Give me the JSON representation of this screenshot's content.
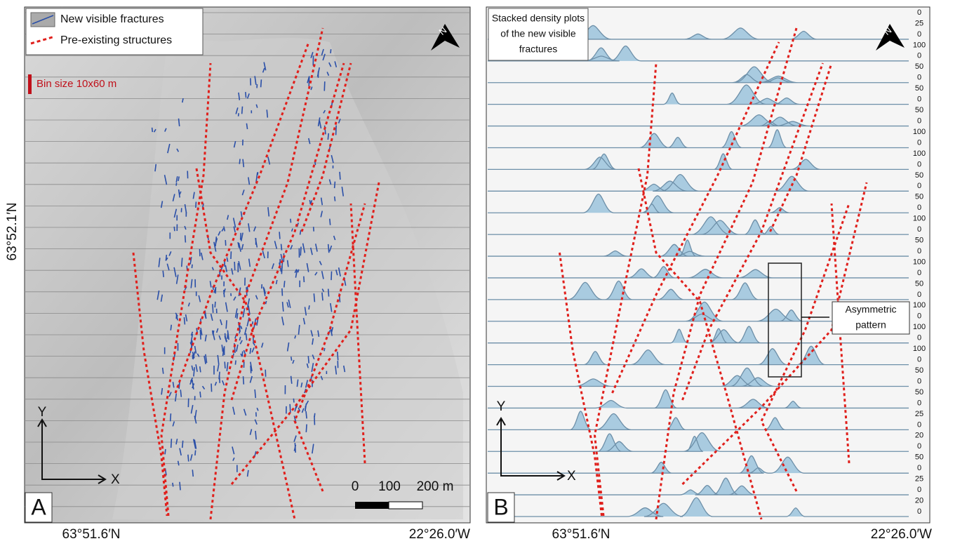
{
  "panel_a": {
    "label": "A",
    "legend": [
      "New visible fractures",
      "Pre-existing structures"
    ],
    "bin_size": "Bin size 10x60 m",
    "north": "N",
    "axis_y": "Y",
    "axis_x": "X",
    "scale_labels": [
      "0",
      "100",
      "200 m"
    ]
  },
  "panel_b": {
    "label": "B",
    "title": [
      "Stacked density plots",
      "of the new visible",
      "fractures"
    ],
    "annotation": [
      "Asymmetric",
      "pattern"
    ],
    "north": "N",
    "axis_y": "Y",
    "axis_x": "X",
    "density_labels": [
      0,
      25,
      0,
      100,
      0,
      50,
      0,
      50,
      0,
      50,
      0,
      100,
      0,
      100,
      0,
      50,
      0,
      50,
      0,
      100,
      0,
      50,
      0,
      100,
      0,
      50,
      0,
      100,
      0,
      100,
      0,
      100,
      0,
      50,
      0,
      50,
      0,
      25,
      0,
      20,
      0,
      50,
      0,
      25,
      0,
      20,
      0
    ]
  },
  "coordinates": {
    "latitude": "63°52.1′N",
    "bottom_left_a": "63°51.6′N",
    "bottom_right_a": "22°26.0′W",
    "bottom_left_b": "63°51.6′N",
    "bottom_right_b": "22°26.0′W"
  }
}
